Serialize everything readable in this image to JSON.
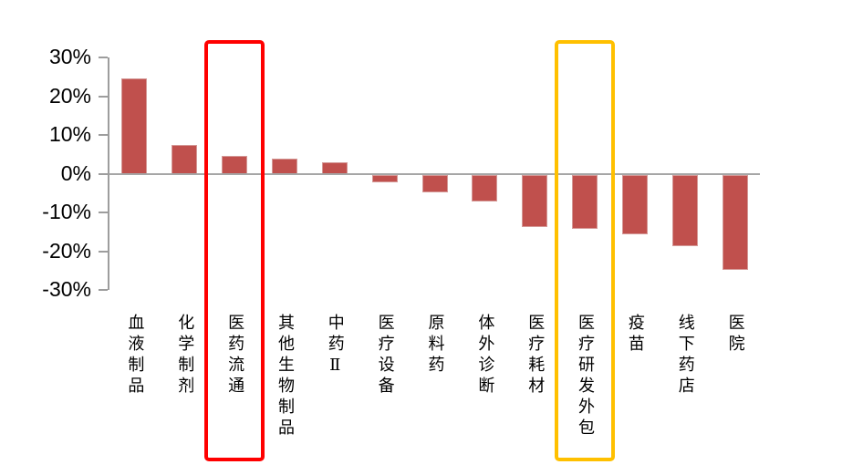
{
  "chart_data": {
    "type": "bar",
    "title": "",
    "xlabel": "",
    "ylabel": "",
    "categories": [
      "血液制品",
      "化学制剂",
      "医药流通",
      "其他生物制品",
      "中药Ⅱ",
      "医疗设备",
      "原料药",
      "体外诊断",
      "医疗耗材",
      "医疗研发外包",
      "疫苗",
      "线下药店",
      "医院"
    ],
    "values": [
      24.5,
      7.5,
      4.5,
      4,
      3,
      -2,
      -4.5,
      -7,
      -13.5,
      -14,
      -15.5,
      -18.5,
      -24.5
    ],
    "ylim": [
      -30,
      30
    ],
    "yticks": [
      {
        "value": 30,
        "label": "30%"
      },
      {
        "value": 20,
        "label": "20%"
      },
      {
        "value": 10,
        "label": "10%"
      },
      {
        "value": 0,
        "label": "0%"
      },
      {
        "value": -10,
        "label": "-10%"
      },
      {
        "value": -20,
        "label": "-20%"
      },
      {
        "value": -30,
        "label": "-30%"
      }
    ],
    "grid": false,
    "legend": false,
    "bar_color": "#C0504D",
    "axis_color": "#9d9d9d",
    "baseline_color": "#a6a6a6",
    "highlights": [
      {
        "category": "医药流通",
        "category_index": 2,
        "color": "#FF0000",
        "shape": "rectangle-outline"
      },
      {
        "category": "医疗研发外包",
        "category_index": 9,
        "color": "#FFC000",
        "shape": "rectangle-outline"
      }
    ]
  }
}
